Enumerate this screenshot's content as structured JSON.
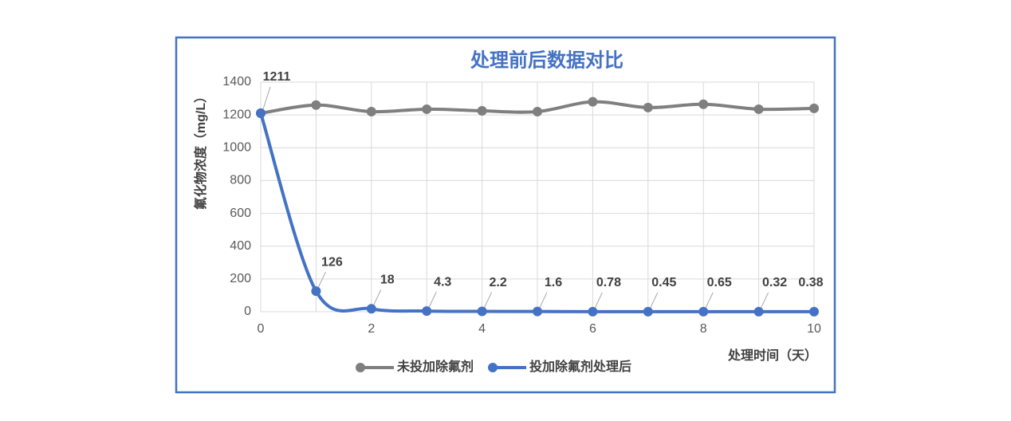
{
  "chart_data": {
    "type": "line",
    "title": "处理前后数据对比",
    "y_label": "氟化物浓度（mg/L）",
    "x_label": "处理时间（天）",
    "x": [
      0,
      1,
      2,
      3,
      4,
      5,
      6,
      7,
      8,
      9,
      10
    ],
    "series": [
      {
        "name": "未投加除氟剂",
        "color": "#7f7f7f",
        "values": [
          1210,
          1260,
          1220,
          1235,
          1225,
          1220,
          1280,
          1245,
          1265,
          1235,
          1240
        ],
        "data_labels": false
      },
      {
        "name": "投加除氟剂处理后",
        "color": "#4472c4",
        "values": [
          1211,
          126,
          18,
          4.3,
          2.2,
          1.6,
          0.78,
          0.45,
          0.65,
          0.32,
          0.38
        ],
        "data_labels": true
      }
    ],
    "xlim": [
      0,
      10
    ],
    "xticks": [
      0,
      2,
      4,
      6,
      8,
      10
    ],
    "ylim": [
      0,
      1400
    ],
    "yticks": [
      0,
      200,
      400,
      600,
      800,
      1000,
      1200,
      1400
    ],
    "grid": true,
    "smooth": true,
    "legend": "bottom"
  }
}
